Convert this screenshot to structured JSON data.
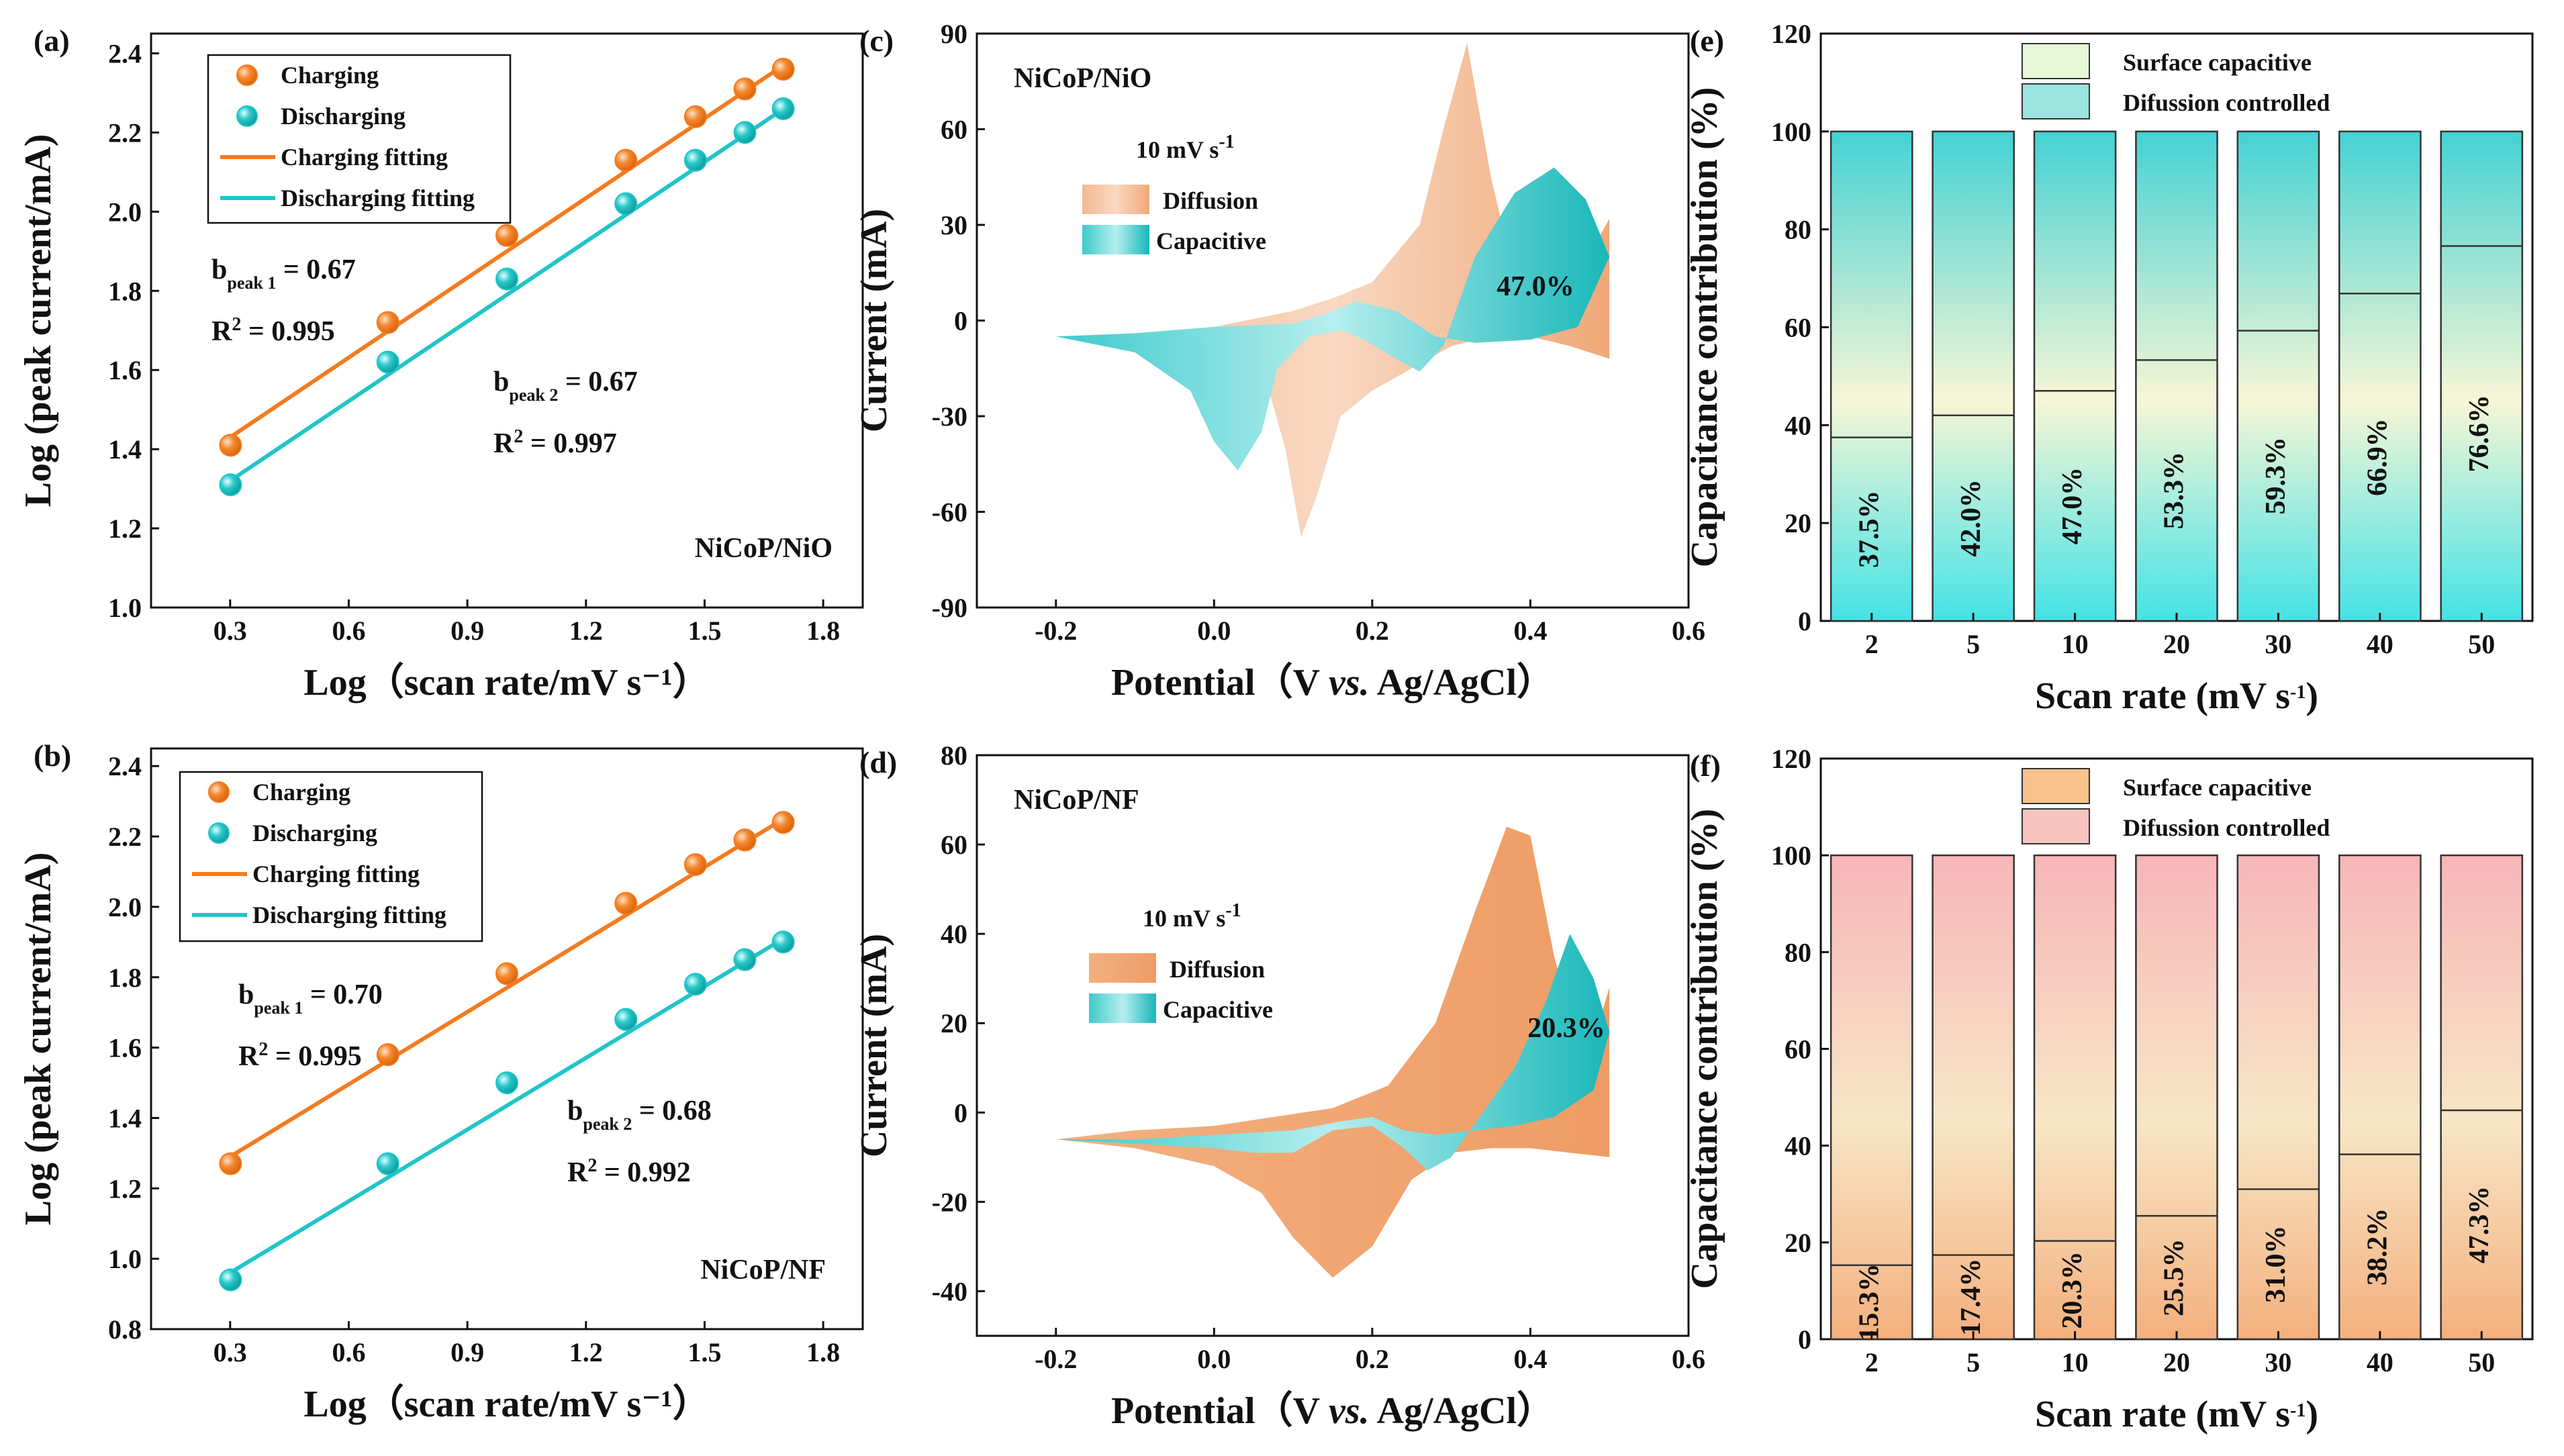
{
  "colors": {
    "charging": "#F47B20",
    "discharging": "#20C5C8",
    "diffusion_cv": "#F1A774",
    "capacitive_cv": "#3CCACB",
    "cyan_bar_top": "#44D2D4",
    "cyan_bar_bottom": "#F7F6D6",
    "pink_bar_top": "#F7B6B8",
    "orange_bar_bottom": "#F4B07E"
  },
  "chart_data": [
    {
      "id": "a",
      "panel_label": "(a)",
      "type": "scatter",
      "sample": "NiCoP/NiO",
      "xlabel": "Log（scan rate/mV s⁻¹）",
      "ylabel": "Log (peak current/mA)",
      "xlim": [
        0.1,
        1.9
      ],
      "ylim": [
        1.0,
        2.45
      ],
      "xticks": [
        0.3,
        0.6,
        0.9,
        1.2,
        1.5,
        1.8
      ],
      "xtick_labels": [
        "0.3",
        "0.6",
        "0.9",
        "1.2",
        "1.5",
        "1.8"
      ],
      "yticks": [
        1.0,
        1.2,
        1.4,
        1.6,
        1.8,
        2.0,
        2.2,
        2.4
      ],
      "ytick_labels": [
        "1.0",
        "1.2",
        "1.4",
        "1.6",
        "1.8",
        "2.0",
        "2.2",
        "2.4"
      ],
      "x": [
        0.301,
        0.699,
        1.0,
        1.301,
        1.477,
        1.602,
        1.699
      ],
      "series": [
        {
          "name": "Charging",
          "values": [
            1.41,
            1.72,
            1.94,
            2.13,
            2.24,
            2.31,
            2.36
          ]
        },
        {
          "name": "Discharging",
          "values": [
            1.31,
            1.62,
            1.83,
            2.02,
            2.13,
            2.2,
            2.26
          ]
        }
      ],
      "fits": [
        {
          "name": "Charging fitting",
          "x": [
            0.3,
            1.7
          ],
          "y": [
            1.43,
            2.37
          ]
        },
        {
          "name": "Discharging fitting",
          "x": [
            0.3,
            1.7
          ],
          "y": [
            1.32,
            2.26
          ]
        }
      ],
      "annotations": [
        {
          "b_prefix": "b",
          "b_sub": "peak 1",
          "b_value": "= 0.67",
          "r2_value": "= 0.995"
        },
        {
          "b_prefix": "b",
          "b_sub": "peak 2",
          "b_value": "= 0.67",
          "r2_value": "= 0.997"
        }
      ],
      "r2_prefix": "R",
      "r2_sup": "2"
    },
    {
      "id": "b",
      "panel_label": "(b)",
      "type": "scatter",
      "sample": "NiCoP/NF",
      "xlabel": "Log（scan rate/mV s⁻¹）",
      "ylabel": "Log (peak current/mA)",
      "xlim": [
        0.1,
        1.9
      ],
      "ylim": [
        0.8,
        2.45
      ],
      "xticks": [
        0.3,
        0.6,
        0.9,
        1.2,
        1.5,
        1.8
      ],
      "xtick_labels": [
        "0.3",
        "0.6",
        "0.9",
        "1.2",
        "1.5",
        "1.8"
      ],
      "yticks": [
        0.8,
        1.0,
        1.2,
        1.4,
        1.6,
        1.8,
        2.0,
        2.2,
        2.4
      ],
      "ytick_labels": [
        "0.8",
        "1.0",
        "1.2",
        "1.4",
        "1.6",
        "1.8",
        "2.0",
        "2.2",
        "2.4"
      ],
      "x": [
        0.301,
        0.699,
        1.0,
        1.301,
        1.477,
        1.602,
        1.699
      ],
      "series": [
        {
          "name": "Charging",
          "values": [
            1.27,
            1.58,
            1.81,
            2.01,
            2.12,
            2.19,
            2.24
          ]
        },
        {
          "name": "Discharging",
          "values": [
            0.94,
            1.27,
            1.5,
            1.68,
            1.78,
            1.85,
            1.9
          ]
        }
      ],
      "fits": [
        {
          "name": "Charging fitting",
          "x": [
            0.3,
            1.7
          ],
          "y": [
            1.29,
            2.25
          ]
        },
        {
          "name": "Discharging fitting",
          "x": [
            0.3,
            1.7
          ],
          "y": [
            0.96,
            1.91
          ]
        }
      ],
      "annotations": [
        {
          "b_prefix": "b",
          "b_sub": "peak 1",
          "b_value": "= 0.70",
          "r2_value": "= 0.995"
        },
        {
          "b_prefix": "b",
          "b_sub": "peak 2",
          "b_value": "= 0.68",
          "r2_value": "= 0.992"
        }
      ],
      "r2_prefix": "R",
      "r2_sup": "2"
    },
    {
      "id": "c",
      "panel_label": "(c)",
      "type": "area",
      "sample": "NiCoP/NiO",
      "scan_rate_label": "10 mV s⁻¹",
      "xlabel": "Potential（V vs. Ag/AgCl）",
      "ylabel": "Current (mA)",
      "xlim": [
        -0.3,
        0.6
      ],
      "ylim": [
        -90,
        90
      ],
      "xticks": [
        -0.2,
        0.0,
        0.2,
        0.4,
        0.6
      ],
      "xtick_labels": [
        "-0.2",
        "0.0",
        "0.2",
        "0.4",
        "0.6"
      ],
      "yticks": [
        -90,
        -60,
        -30,
        0,
        30,
        60,
        90
      ],
      "ytick_labels": [
        "-90",
        "-60",
        "-30",
        "0",
        "30",
        "60",
        "90"
      ],
      "legend": [
        "Diffusion",
        "Capacitive"
      ],
      "capacitive_percent": "47.0%",
      "diffusion_outline": [
        [
          -0.2,
          -5
        ],
        [
          -0.1,
          -6
        ],
        [
          0.0,
          -9
        ],
        [
          0.06,
          -14
        ],
        [
          0.09,
          -40
        ],
        [
          0.11,
          -68
        ],
        [
          0.13,
          -55
        ],
        [
          0.16,
          -30
        ],
        [
          0.2,
          -22
        ],
        [
          0.25,
          -15
        ],
        [
          0.3,
          -8
        ],
        [
          0.35,
          -5
        ],
        [
          0.4,
          -5
        ],
        [
          0.45,
          -8
        ],
        [
          0.5,
          -12
        ],
        [
          0.5,
          32
        ],
        [
          0.46,
          14
        ],
        [
          0.42,
          8
        ],
        [
          0.38,
          14
        ],
        [
          0.35,
          45
        ],
        [
          0.32,
          87
        ],
        [
          0.29,
          60
        ],
        [
          0.26,
          30
        ],
        [
          0.2,
          12
        ],
        [
          0.15,
          7
        ],
        [
          0.1,
          3
        ],
        [
          0.0,
          -2
        ],
        [
          -0.1,
          -4
        ],
        [
          -0.2,
          -5
        ]
      ],
      "capacitive_outline": [
        [
          -0.2,
          -5
        ],
        [
          -0.1,
          -10
        ],
        [
          -0.03,
          -22
        ],
        [
          0.0,
          -38
        ],
        [
          0.03,
          -47
        ],
        [
          0.06,
          -35
        ],
        [
          0.08,
          -15
        ],
        [
          0.12,
          -5
        ],
        [
          0.16,
          -3
        ],
        [
          0.19,
          -6
        ],
        [
          0.23,
          -12
        ],
        [
          0.26,
          -16
        ],
        [
          0.29,
          -8
        ],
        [
          0.33,
          20
        ],
        [
          0.38,
          40
        ],
        [
          0.43,
          48
        ],
        [
          0.47,
          38
        ],
        [
          0.5,
          20
        ],
        [
          0.46,
          -2
        ],
        [
          0.4,
          -6
        ],
        [
          0.33,
          -7
        ],
        [
          0.28,
          -5
        ],
        [
          0.23,
          3
        ],
        [
          0.18,
          6
        ],
        [
          0.14,
          2
        ],
        [
          0.1,
          -1
        ],
        [
          0.0,
          -2
        ],
        [
          -0.1,
          -4
        ],
        [
          -0.2,
          -5
        ]
      ]
    },
    {
      "id": "d",
      "panel_label": "(d)",
      "type": "area",
      "sample": "NiCoP/NF",
      "scan_rate_label": "10 mV s⁻¹",
      "xlabel": "Potential（V vs. Ag/AgCl）",
      "ylabel": "Current (mA)",
      "xlim": [
        -0.3,
        0.6
      ],
      "ylim": [
        -50,
        80
      ],
      "xticks": [
        -0.2,
        0.0,
        0.2,
        0.4,
        0.6
      ],
      "xtick_labels": [
        "-0.2",
        "0.0",
        "0.2",
        "0.4",
        "0.6"
      ],
      "yticks": [
        -40,
        -20,
        0,
        20,
        40,
        60,
        80
      ],
      "ytick_labels": [
        "-40",
        "-20",
        "0",
        "20",
        "40",
        "60",
        "80"
      ],
      "legend": [
        "Diffusion",
        "Capacitive"
      ],
      "capacitive_percent": "20.3%",
      "diffusion_outline": [
        [
          -0.2,
          -6
        ],
        [
          -0.1,
          -8
        ],
        [
          0.0,
          -12
        ],
        [
          0.06,
          -18
        ],
        [
          0.1,
          -28
        ],
        [
          0.15,
          -37
        ],
        [
          0.2,
          -30
        ],
        [
          0.25,
          -15
        ],
        [
          0.3,
          -9
        ],
        [
          0.35,
          -8
        ],
        [
          0.4,
          -8
        ],
        [
          0.45,
          -9
        ],
        [
          0.5,
          -10
        ],
        [
          0.5,
          28
        ],
        [
          0.47,
          10
        ],
        [
          0.43,
          35
        ],
        [
          0.4,
          62
        ],
        [
          0.37,
          64
        ],
        [
          0.33,
          45
        ],
        [
          0.28,
          20
        ],
        [
          0.22,
          6
        ],
        [
          0.15,
          1
        ],
        [
          0.0,
          -3
        ],
        [
          -0.1,
          -4
        ],
        [
          -0.2,
          -6
        ]
      ],
      "capacitive_outline": [
        [
          -0.2,
          -6
        ],
        [
          -0.1,
          -7
        ],
        [
          0.0,
          -8
        ],
        [
          0.05,
          -9
        ],
        [
          0.1,
          -9
        ],
        [
          0.15,
          -4
        ],
        [
          0.2,
          -3
        ],
        [
          0.24,
          -8
        ],
        [
          0.27,
          -13
        ],
        [
          0.3,
          -10
        ],
        [
          0.34,
          0
        ],
        [
          0.38,
          10
        ],
        [
          0.42,
          25
        ],
        [
          0.45,
          40
        ],
        [
          0.48,
          30
        ],
        [
          0.5,
          18
        ],
        [
          0.48,
          5
        ],
        [
          0.43,
          -1
        ],
        [
          0.38,
          -3
        ],
        [
          0.33,
          -4
        ],
        [
          0.28,
          -5
        ],
        [
          0.24,
          -4
        ],
        [
          0.2,
          -1
        ],
        [
          0.16,
          -2
        ],
        [
          0.1,
          -4
        ],
        [
          0.0,
          -5
        ],
        [
          -0.1,
          -6
        ],
        [
          -0.2,
          -6
        ]
      ]
    },
    {
      "id": "e",
      "panel_label": "(e)",
      "type": "bar",
      "xlabel": "Scan rate (mV s⁻¹)",
      "ylabel": "Capacitance contribution (%)",
      "ylim": [
        0,
        120
      ],
      "yticks": [
        0,
        20,
        40,
        60,
        80,
        100,
        120
      ],
      "ytick_labels": [
        "0",
        "20",
        "40",
        "60",
        "80",
        "100",
        "120"
      ],
      "categories": [
        "2",
        "5",
        "10",
        "20",
        "30",
        "40",
        "50"
      ],
      "series": [
        {
          "name": "Surface capacitive",
          "values": [
            37.5,
            42.0,
            47.0,
            53.3,
            59.3,
            66.9,
            76.6
          ]
        },
        {
          "name": "Difussion controlled",
          "values": [
            62.5,
            58.0,
            53.0,
            46.7,
            40.7,
            33.1,
            23.4
          ]
        }
      ],
      "value_labels": [
        "37.5%",
        "42.0%",
        "47.0%",
        "53.3%",
        "59.3%",
        "66.9%",
        "76.6%"
      ]
    },
    {
      "id": "f",
      "panel_label": "(f)",
      "type": "bar",
      "xlabel": "Scan rate (mV s⁻¹)",
      "ylabel": "Capacitance contribution (%)",
      "ylim": [
        0,
        120
      ],
      "yticks": [
        0,
        20,
        40,
        60,
        80,
        100,
        120
      ],
      "ytick_labels": [
        "0",
        "20",
        "40",
        "60",
        "80",
        "100",
        "120"
      ],
      "categories": [
        "2",
        "5",
        "10",
        "20",
        "30",
        "40",
        "50"
      ],
      "series": [
        {
          "name": "Surface capacitive",
          "values": [
            15.3,
            17.4,
            20.3,
            25.5,
            31.0,
            38.2,
            47.3
          ]
        },
        {
          "name": "Difussion controlled",
          "values": [
            84.7,
            82.6,
            79.7,
            74.5,
            69.0,
            61.8,
            52.7
          ]
        }
      ],
      "value_labels": [
        "15.3%",
        "17.4%",
        "20.3%",
        "25.5%",
        "31.0%",
        "38.2%",
        "47.3%"
      ]
    }
  ]
}
